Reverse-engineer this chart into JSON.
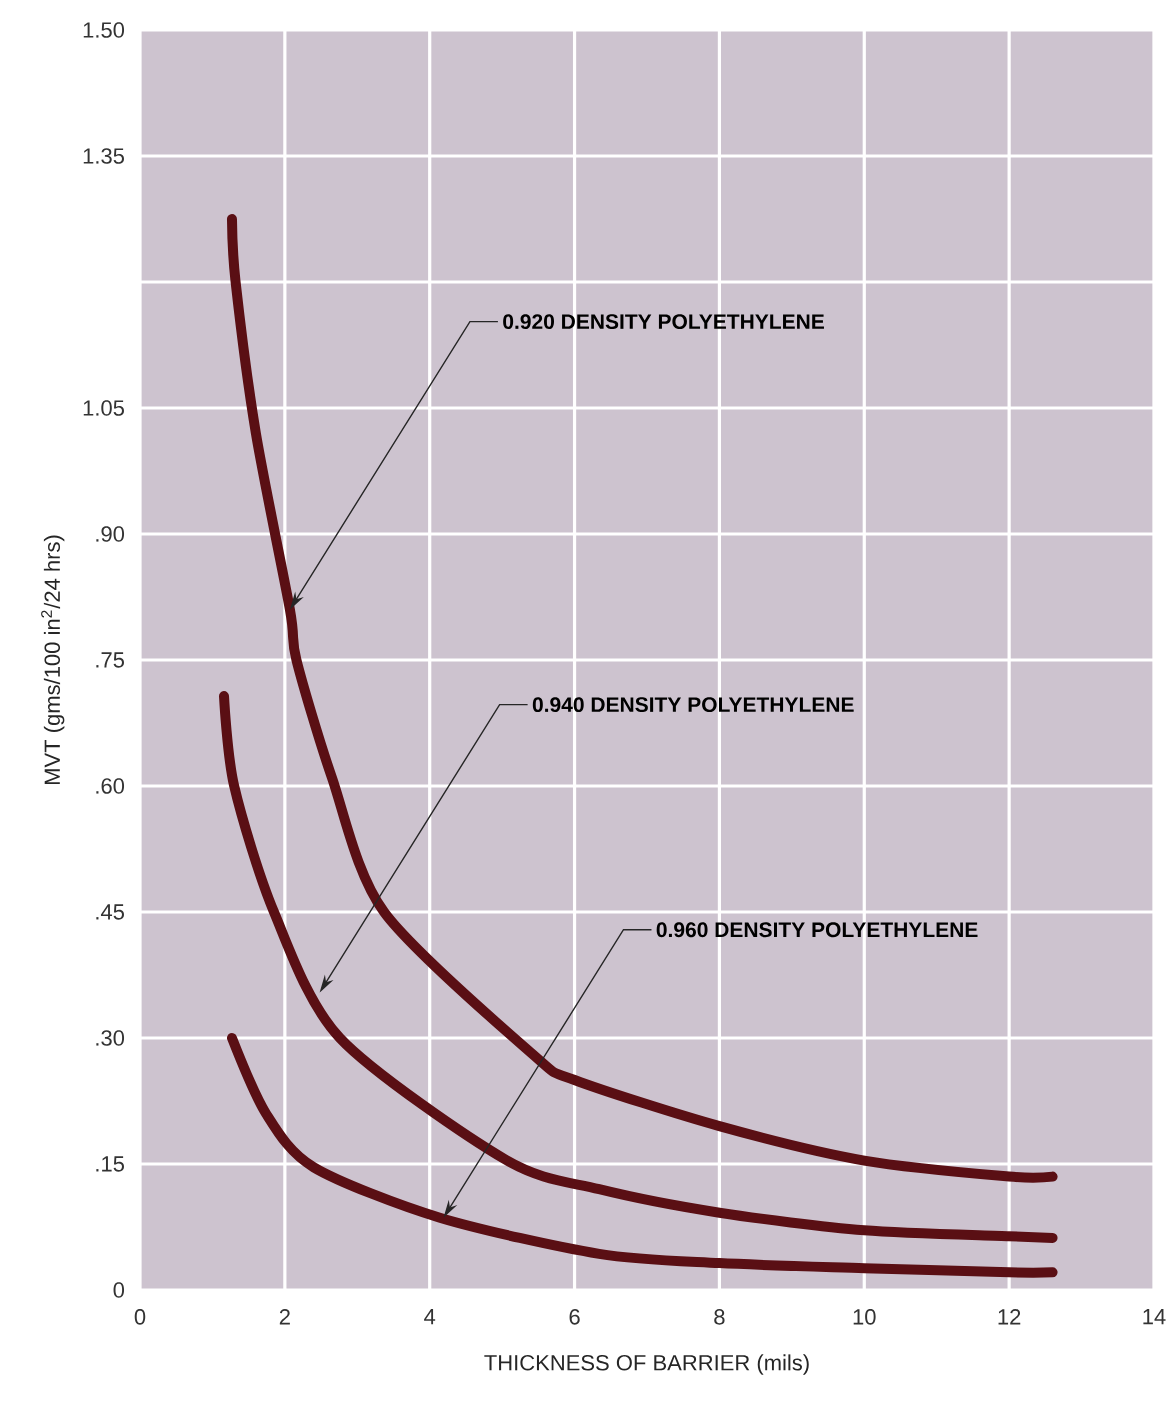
{
  "chart_data": {
    "type": "line",
    "xlabel": "THICKNESS OF BARRIER (mils)",
    "ylabel": "MVT (gms/100 in$^{2}$/24 hrs)",
    "xlim": [
      0,
      14
    ],
    "xticks": [
      0,
      2,
      4,
      6,
      8,
      10,
      12,
      14
    ],
    "ylim": [
      0,
      1.5
    ],
    "yticks": [
      {
        "value": 0,
        "label": "0"
      },
      {
        "value": 0.15,
        "label": ".15"
      },
      {
        "value": 0.3,
        "label": ".30"
      },
      {
        "value": 0.45,
        "label": ".45"
      },
      {
        "value": 0.6,
        "label": ".60"
      },
      {
        "value": 0.75,
        "label": ".75"
      },
      {
        "value": 0.9,
        "label": ".90"
      },
      {
        "value": 1.05,
        "label": "1.05"
      },
      {
        "value": 1.2,
        "label": null
      },
      {
        "value": 1.35,
        "label": "1.35"
      },
      {
        "value": 1.5,
        "label": "1.50"
      }
    ],
    "grid": true,
    "legend": false,
    "marker": "none",
    "line_style": "solid",
    "series": [
      {
        "color": "#5a0f14",
        "x": [
          1.27,
          1.32,
          1.6,
          2.07,
          2.16,
          2.65,
          3.37,
          5.43,
          6,
          8,
          10,
          12,
          12.6
        ],
        "values": [
          1.275,
          1.2,
          1.02,
          0.81,
          0.75,
          0.61,
          0.45,
          0.28,
          0.25,
          0.195,
          0.154,
          0.135,
          0.135
        ]
      },
      {
        "color": "#5a0f14",
        "x": [
          1.16,
          1.3,
          1.85,
          2.76,
          5.05,
          6.34,
          8,
          10,
          12,
          12.6
        ],
        "values": [
          0.707,
          0.6,
          0.45,
          0.3,
          0.155,
          0.12,
          0.092,
          0.071,
          0.064,
          0.062
        ]
      },
      {
        "color": "#5a0f14",
        "x": [
          1.27,
          1.74,
          2.4,
          4.14,
          6.34,
          8,
          10,
          12,
          12.6
        ],
        "values": [
          0.3,
          0.21,
          0.146,
          0.086,
          0.043,
          0.032,
          0.026,
          0.021,
          0.021
        ]
      }
    ],
    "annotations": [
      {
        "text": "0.920 DENSITY POLYETHYLENE",
        "x": 2.07,
        "y": 0.81
      },
      {
        "text": "0.940 DENSITY POLYETHYLENE",
        "x": 2.48,
        "y": 0.354
      },
      {
        "text": "0.960 DENSITY POLYETHYLENE",
        "x": 4.19,
        "y": 0.086
      }
    ]
  }
}
